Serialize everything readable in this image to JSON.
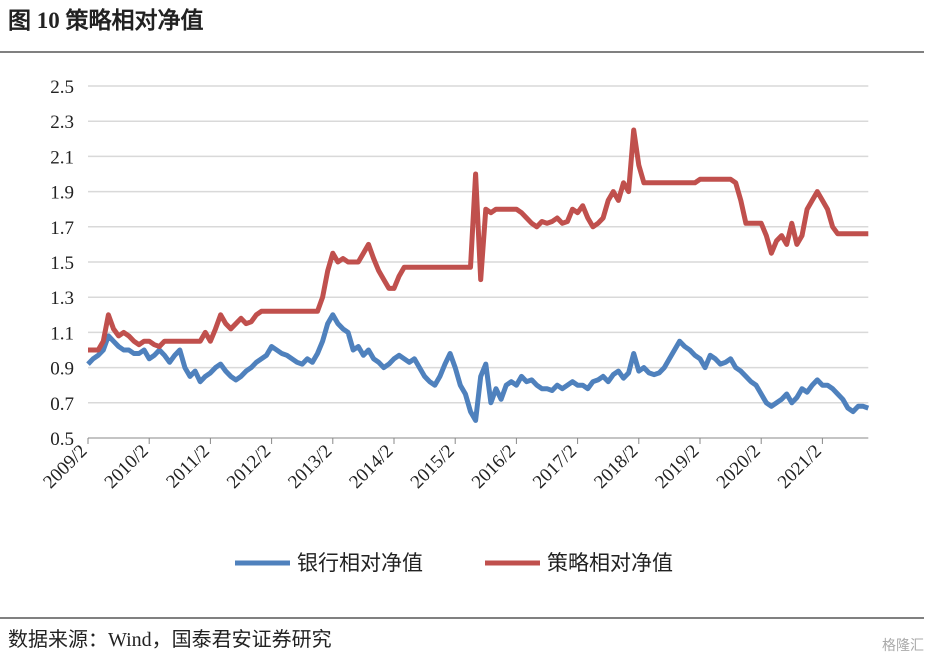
{
  "header": {
    "title": "图 10  策略相对净值"
  },
  "chart_data": {
    "type": "line",
    "categories": [
      "2009/2",
      null,
      null,
      null,
      null,
      null,
      null,
      null,
      null,
      null,
      null,
      null,
      "2010/2",
      null,
      null,
      null,
      null,
      null,
      null,
      null,
      null,
      null,
      null,
      null,
      "2011/2",
      null,
      null,
      null,
      null,
      null,
      null,
      null,
      null,
      null,
      null,
      null,
      "2012/2",
      null,
      null,
      null,
      null,
      null,
      null,
      null,
      null,
      null,
      null,
      null,
      "2013/2",
      null,
      null,
      null,
      null,
      null,
      null,
      null,
      null,
      null,
      null,
      null,
      "2014/2",
      null,
      null,
      null,
      null,
      null,
      null,
      null,
      null,
      null,
      null,
      null,
      "2015/2",
      null,
      null,
      null,
      null,
      null,
      null,
      null,
      null,
      null,
      null,
      null,
      "2016/2",
      null,
      null,
      null,
      null,
      null,
      null,
      null,
      null,
      null,
      null,
      null,
      "2017/2",
      null,
      null,
      null,
      null,
      null,
      null,
      null,
      null,
      null,
      null,
      null,
      "2018/2",
      null,
      null,
      null,
      null,
      null,
      null,
      null,
      null,
      null,
      null,
      null,
      "2019/2",
      null,
      null,
      null,
      null,
      null,
      null,
      null,
      null,
      null,
      null,
      null,
      "2020/2",
      null,
      null,
      null,
      null,
      null,
      null,
      null,
      null,
      null,
      null,
      null,
      "2021/2",
      null,
      null,
      null,
      null,
      null,
      null,
      null,
      null,
      null
    ],
    "series": [
      {
        "name": "银行相对净值",
        "color": "#4f81bd",
        "values": [
          0.92,
          0.95,
          0.97,
          1.0,
          1.08,
          1.05,
          1.02,
          1.0,
          1.0,
          0.98,
          0.98,
          1.0,
          0.95,
          0.97,
          1.0,
          0.97,
          0.93,
          0.97,
          1.0,
          0.9,
          0.85,
          0.88,
          0.82,
          0.85,
          0.87,
          0.9,
          0.92,
          0.88,
          0.85,
          0.83,
          0.85,
          0.88,
          0.9,
          0.93,
          0.95,
          0.97,
          1.02,
          1.0,
          0.98,
          0.97,
          0.95,
          0.93,
          0.92,
          0.95,
          0.93,
          0.98,
          1.05,
          1.15,
          1.2,
          1.15,
          1.12,
          1.1,
          1.0,
          1.02,
          0.97,
          1.0,
          0.95,
          0.93,
          0.9,
          0.92,
          0.95,
          0.97,
          0.95,
          0.93,
          0.95,
          0.9,
          0.85,
          0.82,
          0.8,
          0.85,
          0.92,
          0.98,
          0.9,
          0.8,
          0.75,
          0.65,
          0.6,
          0.85,
          0.92,
          0.7,
          0.78,
          0.72,
          0.8,
          0.82,
          0.8,
          0.85,
          0.82,
          0.83,
          0.8,
          0.78,
          0.78,
          0.77,
          0.8,
          0.78,
          0.8,
          0.82,
          0.8,
          0.8,
          0.78,
          0.82,
          0.83,
          0.85,
          0.82,
          0.86,
          0.88,
          0.84,
          0.87,
          0.98,
          0.88,
          0.9,
          0.87,
          0.86,
          0.87,
          0.9,
          0.95,
          1.0,
          1.05,
          1.02,
          1.0,
          0.97,
          0.95,
          0.9,
          0.97,
          0.95,
          0.92,
          0.93,
          0.95,
          0.9,
          0.88,
          0.85,
          0.82,
          0.8,
          0.75,
          0.7,
          0.68,
          0.7,
          0.72,
          0.75,
          0.7,
          0.73,
          0.78,
          0.76,
          0.8,
          0.83,
          0.8,
          0.8,
          0.78,
          0.75,
          0.72,
          0.67,
          0.65,
          0.68,
          0.68,
          0.67
        ]
      },
      {
        "name": "策略相对净值",
        "color": "#c0504d",
        "values": [
          1.0,
          1.0,
          1.0,
          1.05,
          1.2,
          1.12,
          1.08,
          1.1,
          1.08,
          1.05,
          1.03,
          1.05,
          1.05,
          1.03,
          1.02,
          1.05,
          1.05,
          1.05,
          1.05,
          1.05,
          1.05,
          1.05,
          1.05,
          1.1,
          1.05,
          1.12,
          1.2,
          1.15,
          1.12,
          1.15,
          1.18,
          1.15,
          1.16,
          1.2,
          1.22,
          1.22,
          1.22,
          1.22,
          1.22,
          1.22,
          1.22,
          1.22,
          1.22,
          1.22,
          1.22,
          1.22,
          1.3,
          1.45,
          1.55,
          1.5,
          1.52,
          1.5,
          1.5,
          1.5,
          1.55,
          1.6,
          1.52,
          1.45,
          1.4,
          1.35,
          1.35,
          1.42,
          1.47,
          1.47,
          1.47,
          1.47,
          1.47,
          1.47,
          1.47,
          1.47,
          1.47,
          1.47,
          1.47,
          1.47,
          1.47,
          1.47,
          2.0,
          1.4,
          1.8,
          1.78,
          1.8,
          1.8,
          1.8,
          1.8,
          1.8,
          1.78,
          1.75,
          1.72,
          1.7,
          1.73,
          1.72,
          1.73,
          1.75,
          1.72,
          1.73,
          1.8,
          1.78,
          1.82,
          1.75,
          1.7,
          1.72,
          1.75,
          1.85,
          1.9,
          1.85,
          1.95,
          1.9,
          2.25,
          2.05,
          1.95,
          1.95,
          1.95,
          1.95,
          1.95,
          1.95,
          1.95,
          1.95,
          1.95,
          1.95,
          1.95,
          1.97,
          1.97,
          1.97,
          1.97,
          1.97,
          1.97,
          1.97,
          1.95,
          1.85,
          1.72,
          1.72,
          1.72,
          1.72,
          1.65,
          1.55,
          1.62,
          1.65,
          1.6,
          1.72,
          1.6,
          1.65,
          1.8,
          1.85,
          1.9,
          1.85,
          1.8,
          1.7,
          1.66,
          1.66,
          1.66,
          1.66,
          1.66,
          1.66,
          1.66
        ]
      }
    ],
    "ylim": [
      0.5,
      2.5
    ],
    "yticks": [
      0.5,
      0.7,
      0.9,
      1.1,
      1.3,
      1.5,
      1.7,
      1.9,
      2.1,
      2.3,
      2.5
    ],
    "grid": true
  },
  "footer": {
    "source": "数据来源：Wind，国泰君安证券研究",
    "watermark": "格隆汇"
  }
}
